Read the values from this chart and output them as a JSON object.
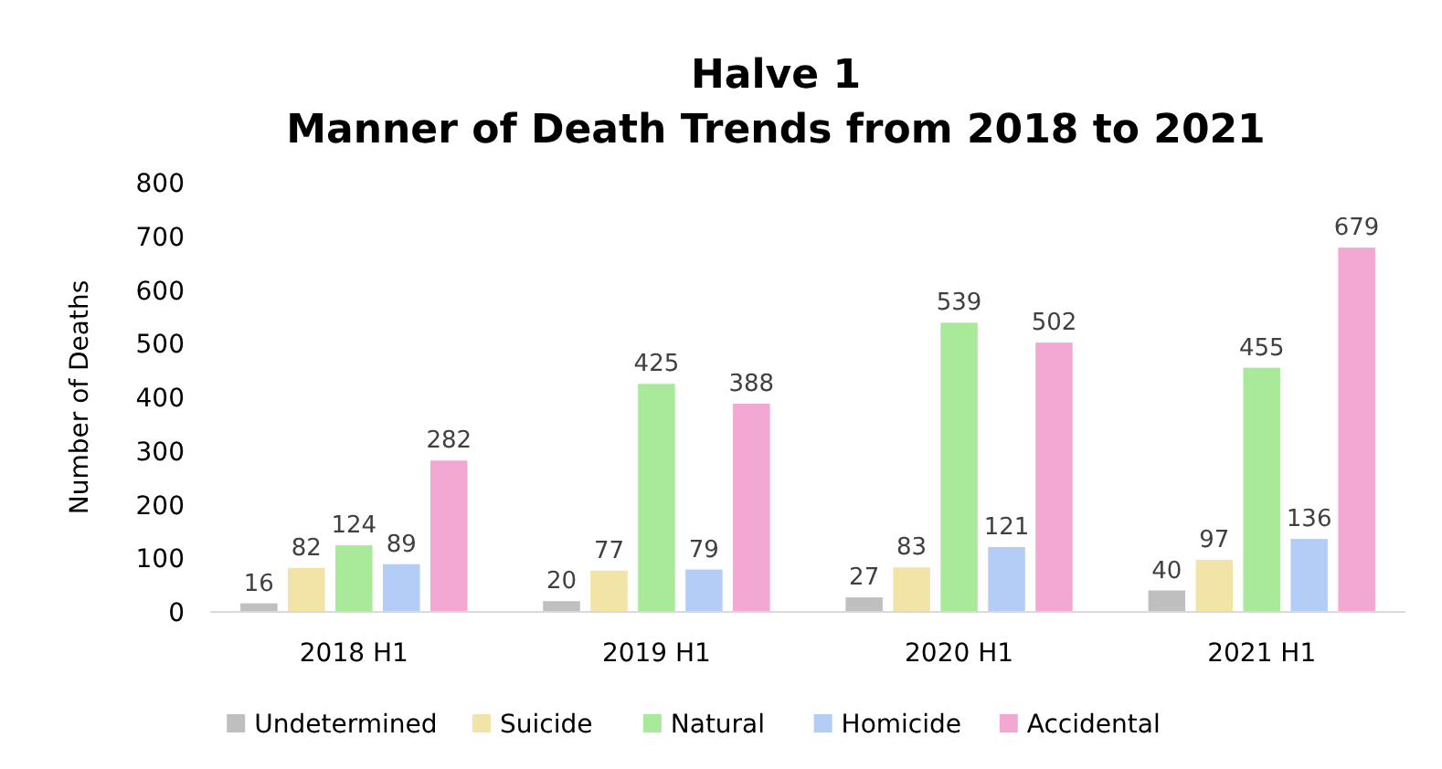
{
  "chart_data": {
    "type": "bar",
    "title": "Halve 1\nManner of Death Trends from 2018 to 2021",
    "ylabel": "Number of Deaths",
    "categories": [
      "2018 H1",
      "2019 H1",
      "2020 H1",
      "2021 H1"
    ],
    "series": [
      {
        "name": "Undetermined",
        "color": "#bfbfbf",
        "values": [
          16,
          20,
          27,
          40
        ]
      },
      {
        "name": "Suicide",
        "color": "#f2e3a7",
        "values": [
          82,
          77,
          83,
          97
        ]
      },
      {
        "name": "Natural",
        "color": "#a8ea9a",
        "values": [
          124,
          425,
          539,
          455
        ]
      },
      {
        "name": "Homicide",
        "color": "#b4cdf6",
        "values": [
          89,
          79,
          121,
          136
        ]
      },
      {
        "name": "Accidental",
        "color": "#f2a8d2",
        "values": [
          282,
          388,
          502,
          679
        ]
      }
    ],
    "ylim": [
      0,
      800
    ],
    "yticks": [
      0,
      100,
      200,
      300,
      400,
      500,
      600,
      700,
      800
    ],
    "grid": false,
    "legend": "bottom",
    "data_labels": true
  }
}
